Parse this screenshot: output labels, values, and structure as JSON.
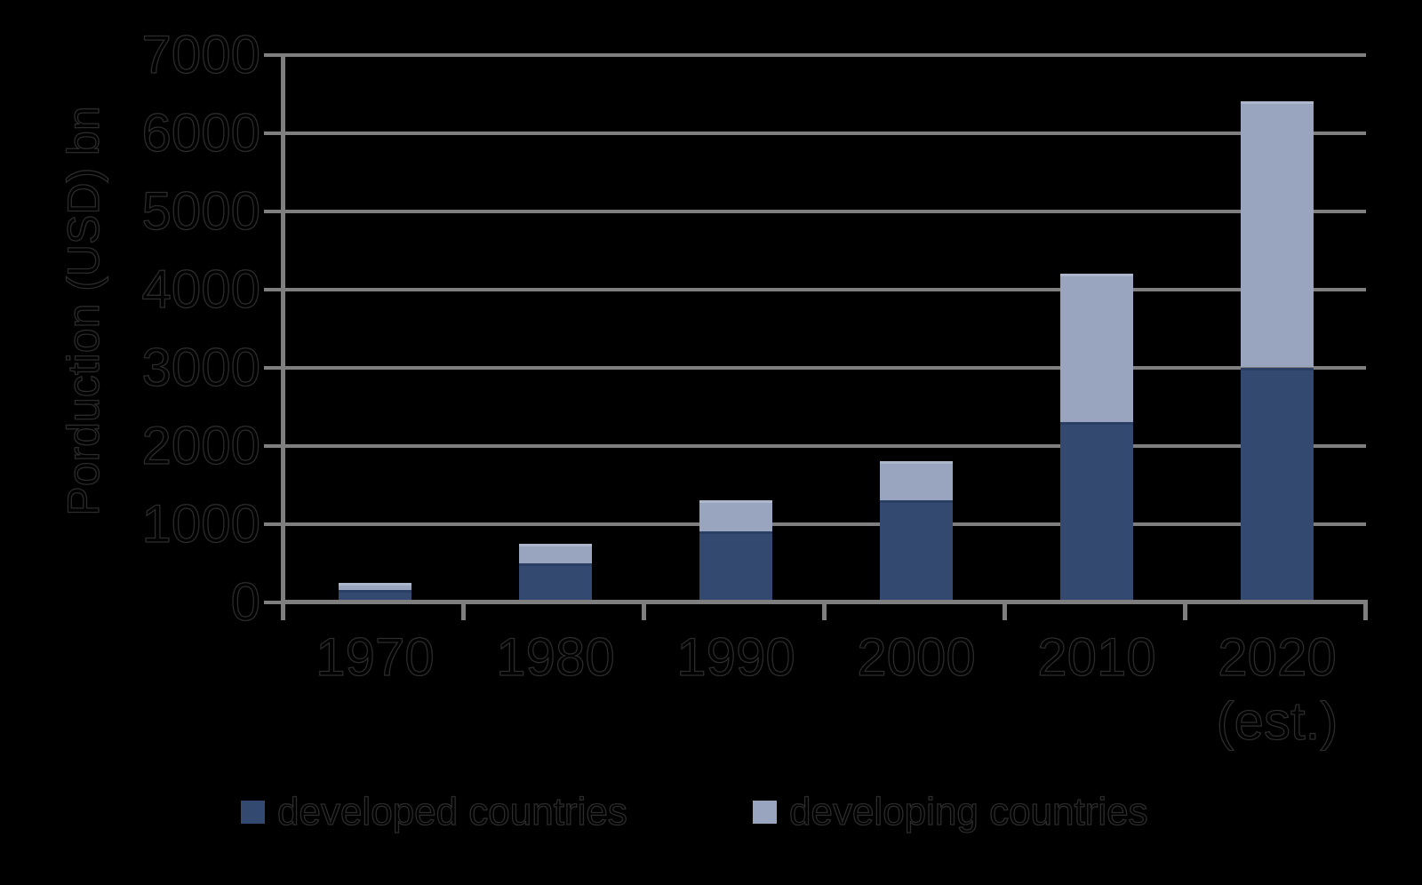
{
  "chart_data": {
    "type": "bar",
    "stacked": true,
    "title": "",
    "ylabel": "Porduction (USD) bn",
    "xlabel": "",
    "categories": [
      "1970",
      "1980",
      "1990",
      "2000",
      "2010",
      "2020\n(est.)"
    ],
    "series": [
      {
        "name": "developed countries",
        "color": "#34496F",
        "edge_color": "#2B3E63",
        "values": [
          150,
          500,
          900,
          1300,
          2300,
          3000
        ]
      },
      {
        "name": "developing countries",
        "color": "#99A5BF",
        "edge_color": "#ADB7CB",
        "values": [
          100,
          250,
          400,
          500,
          1900,
          3400
        ]
      }
    ],
    "totals": [
      250,
      750,
      1300,
      1800,
      4200,
      6400
    ],
    "ylim": [
      0,
      7000
    ],
    "ytick_interval": 1000,
    "yticks": [
      "0",
      "1000",
      "2000",
      "3000",
      "4000",
      "5000",
      "6000",
      "7000"
    ],
    "grid": true,
    "legend_position": "bottom",
    "colors": {
      "background": "#000000",
      "axis": "#7F7F7F",
      "gridline": "#7F7F7F",
      "text": "#000000",
      "text_outline": "#2B2B2B"
    }
  }
}
